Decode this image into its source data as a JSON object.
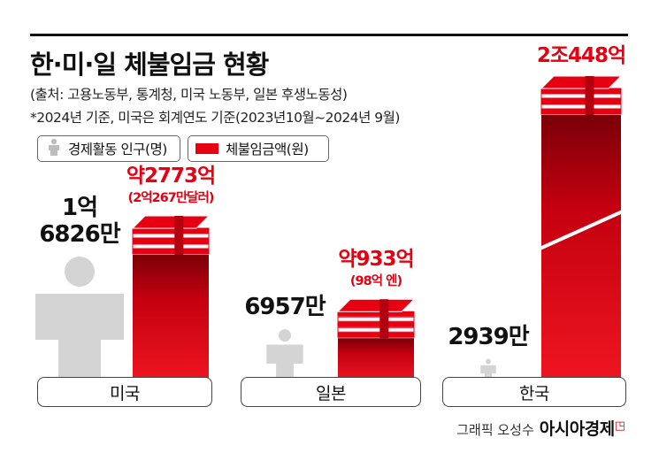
{
  "header": {
    "title": "한·미·일 체불임금 현황",
    "source": "(출처: 고용노동부, 통계청, 미국 노동부, 일본 후생노동성)",
    "note": "*2024년 기준, 미국은 회계연도 기준(2023년10월~2024년 9월)"
  },
  "legend": {
    "population": "경제활동 인구(명)",
    "amount": "체불임금액(원)"
  },
  "chart_data": {
    "type": "bar",
    "categories": [
      "미국",
      "일본",
      "한국"
    ],
    "series": [
      {
        "name": "경제활동 인구(명)",
        "values": [
          168260000,
          69570000,
          29390000
        ],
        "labels": [
          "1억\n6826만",
          "6957만",
          "2939만"
        ]
      },
      {
        "name": "체불임금액(원)",
        "values": [
          277300000000,
          93300000000,
          2044800000000
        ],
        "labels": [
          "약2773억",
          "약933억",
          "2조448억"
        ],
        "notes": [
          "(2억267만달러)",
          "(98억 엔)",
          ""
        ]
      }
    ],
    "broken_axis": true,
    "colors": {
      "amount": "#e60012",
      "population": "#d4d4d4"
    }
  },
  "credit": {
    "graphic": "그래픽 오성수",
    "brand": "아시아경제"
  }
}
